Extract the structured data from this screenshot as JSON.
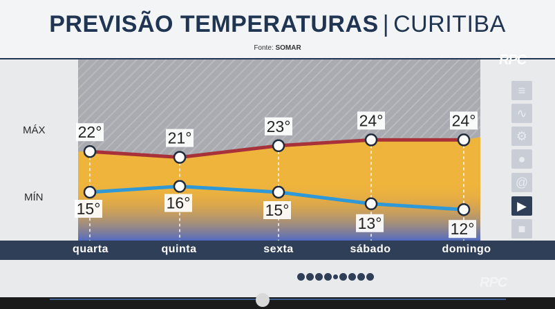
{
  "header": {
    "title_bold": "PREVISÃO TEMPERATURAS",
    "separator": "|",
    "city": "CURITIBA",
    "source_label": "Fonte:",
    "source_name": "SOMAR"
  },
  "row_labels": {
    "max": "MÁX",
    "min": "MÍN"
  },
  "chart_data": {
    "type": "line",
    "categories": [
      "quarta",
      "quinta",
      "sexta",
      "sábado",
      "domingo"
    ],
    "series": [
      {
        "key": "max",
        "values": [
          22,
          21,
          23,
          24,
          24
        ],
        "color": "#a8323a"
      },
      {
        "key": "min",
        "values": [
          15,
          16,
          15,
          13,
          12
        ],
        "color": "#2f98d6"
      }
    ],
    "value_labels": {
      "max": [
        "22°",
        "21°",
        "23°",
        "24°",
        "24°"
      ],
      "min": [
        "15°",
        "16°",
        "15°",
        "13°",
        "12°"
      ]
    },
    "ylim": [
      10,
      26
    ],
    "fill_color": "#efb43c"
  },
  "sidebar_icons": [
    "list-icon",
    "pulse-icon",
    "gear-icon",
    "globe-icon",
    "at-icon",
    "play-icon",
    "camera-icon"
  ],
  "brand": {
    "logo": "RPC",
    "watermark": "RPC"
  },
  "pager": {
    "count": 9,
    "active_index": 4
  }
}
